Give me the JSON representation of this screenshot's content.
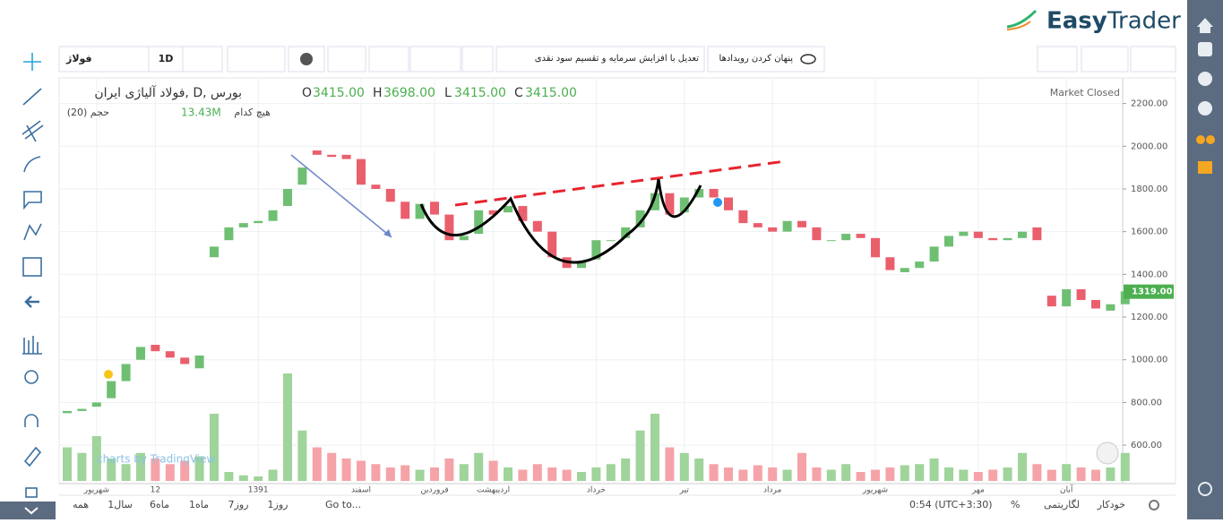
{
  "brand": {
    "easy": "Easy",
    "trader": "Trader"
  },
  "toolbar": {
    "symbol": "فولاژ",
    "interval": "1D",
    "adjust": "تعدیل با افزایش سرمایه و تقسیم سود نقدی",
    "hide_events": "پنهان کردن رویدادها"
  },
  "legend": {
    "title": "فولاد آلیاژی ایران, D, بورس",
    "o_label": "O",
    "o": "3415.00",
    "h_label": "H",
    "h": "3698.00",
    "l_label": "L",
    "l": "3415.00",
    "c_label": "C",
    "c": "3415.00",
    "volume_title": "(حجم (20",
    "volume_ma": "هیچ کدام",
    "volume_value": "13.43M",
    "market": "Market Closed",
    "watermark": "charts by TradingView"
  },
  "chart_data": {
    "type": "candlestick",
    "open": [
      750,
      760,
      780,
      820,
      900,
      1000,
      1070,
      1040,
      1010,
      960,
      1480,
      1560,
      1620,
      1640,
      1650,
      1720,
      1820,
      1980,
      1960,
      1960,
      1940,
      1820,
      1800,
      1740,
      1660,
      1740,
      1680,
      1560,
      1590,
      1700,
      1690,
      1720,
      1650,
      1600,
      1480,
      1430,
      1470,
      1560,
      1570,
      1620,
      1700,
      1780,
      1690,
      1760,
      1800,
      1760,
      1700,
      1640,
      1620,
      1600,
      1650,
      1620,
      1560,
      1560,
      1590,
      1570,
      1480,
      1410,
      1430,
      1460,
      1530,
      1580,
      1600,
      1570,
      1560,
      1570,
      1620,
      1300,
      1250,
      1330,
      1280,
      1230,
      1260
    ],
    "close": [
      760,
      770,
      800,
      900,
      980,
      1060,
      1040,
      1010,
      980,
      1020,
      1530,
      1620,
      1640,
      1650,
      1700,
      1800,
      1900,
      1960,
      1950,
      1940,
      1820,
      1800,
      1740,
      1660,
      1730,
      1680,
      1560,
      1580,
      1700,
      1680,
      1720,
      1650,
      1600,
      1480,
      1430,
      1460,
      1560,
      1560,
      1620,
      1700,
      1780,
      1680,
      1760,
      1800,
      1760,
      1700,
      1640,
      1620,
      1600,
      1650,
      1620,
      1560,
      1560,
      1590,
      1570,
      1480,
      1420,
      1430,
      1460,
      1530,
      1580,
      1600,
      1570,
      1560,
      1570,
      1600,
      1560,
      1250,
      1330,
      1280,
      1240,
      1260,
      1320
    ],
    "volume": [
      30,
      25,
      40,
      20,
      15,
      25,
      20,
      15,
      18,
      22,
      60,
      8,
      5,
      4,
      10,
      96,
      45,
      30,
      25,
      20,
      18,
      15,
      12,
      14,
      10,
      12,
      20,
      15,
      25,
      18,
      12,
      10,
      15,
      12,
      10,
      8,
      12,
      15,
      20,
      45,
      60,
      30,
      25,
      20,
      15,
      12,
      10,
      14,
      12,
      10,
      25,
      12,
      10,
      15,
      8,
      10,
      12,
      14,
      15,
      20,
      12,
      10,
      8,
      10,
      12,
      25,
      15,
      10,
      15,
      12,
      10,
      12,
      25
    ],
    "ylim": [
      420,
      2320
    ],
    "yticks": [
      {
        "value": 2200,
        "label": "2200.00"
      },
      {
        "value": 2000,
        "label": "2000.00"
      },
      {
        "value": 1800,
        "label": "1800.00"
      },
      {
        "value": 1600,
        "label": "1600.00"
      },
      {
        "value": 1400,
        "label": "1400.00"
      },
      {
        "value": 1200,
        "label": "1200.00"
      },
      {
        "value": 1000,
        "label": "1000.00"
      },
      {
        "value": 800,
        "label": "800.00"
      },
      {
        "value": 600,
        "label": "600.00"
      }
    ],
    "last_price": {
      "value": 1319,
      "label": "1319.00"
    },
    "time_labels": [
      "شهریور",
      "12",
      "1391",
      "اسفند",
      "فروردین",
      "اردیبهشت",
      "خرداد",
      "تیر",
      "مرداد",
      "شهریور",
      "مهر",
      "آبان"
    ],
    "up_color": "#6fbf73",
    "down_color": "#ea5f6c",
    "up_volume_color": "#9fd49a",
    "down_volume_color": "#f5a3a8"
  },
  "bottom_bar": {
    "ranges": [
      "همه",
      "1سال",
      "6ماه",
      "1ماه",
      "7روز",
      "1روز"
    ],
    "goto": "Go to...",
    "time": "0:54 (UTC+3:30)",
    "percent": "%",
    "log": "لگاریتمی",
    "auto": "خودکار"
  }
}
